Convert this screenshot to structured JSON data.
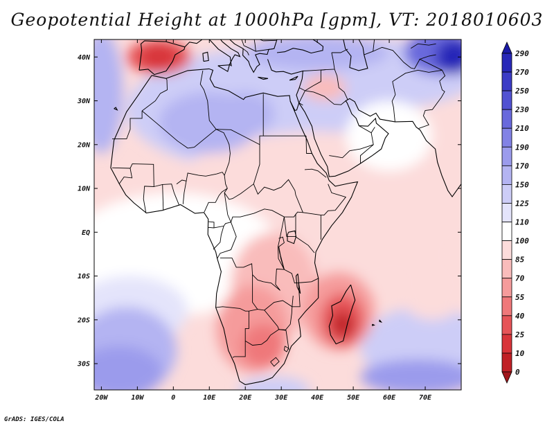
{
  "chart_data": {
    "type": "heatmap",
    "title": "Geopotential Height at 1000hPa [gpm], VT: 2018010603",
    "variable": "Geopotential Height",
    "level": "1000hPa",
    "units": "gpm",
    "valid_time": "2018010603",
    "x_axis": {
      "label": "",
      "range": [
        -22,
        80
      ],
      "ticks": [
        {
          "value": -20,
          "label": "20W"
        },
        {
          "value": -10,
          "label": "10W"
        },
        {
          "value": 0,
          "label": "0"
        },
        {
          "value": 10,
          "label": "10E"
        },
        {
          "value": 20,
          "label": "20E"
        },
        {
          "value": 30,
          "label": "30E"
        },
        {
          "value": 40,
          "label": "40E"
        },
        {
          "value": 50,
          "label": "50E"
        },
        {
          "value": 60,
          "label": "60E"
        },
        {
          "value": 70,
          "label": "70E"
        }
      ]
    },
    "y_axis": {
      "label": "",
      "range": [
        -36,
        44
      ],
      "ticks": [
        {
          "value": 40,
          "label": "40N"
        },
        {
          "value": 30,
          "label": "30N"
        },
        {
          "value": 20,
          "label": "20N"
        },
        {
          "value": 10,
          "label": "10N"
        },
        {
          "value": 0,
          "label": "EQ"
        },
        {
          "value": -10,
          "label": "10S"
        },
        {
          "value": -20,
          "label": "20S"
        },
        {
          "value": -30,
          "label": "30S"
        }
      ]
    },
    "colorbar": {
      "levels": [
        "0",
        "10",
        "25",
        "40",
        "55",
        "70",
        "85",
        "100",
        "110",
        "125",
        "150",
        "170",
        "190",
        "210",
        "230",
        "250",
        "270",
        "290"
      ],
      "colors": [
        "#a0161b",
        "#c02026",
        "#d8343a",
        "#e65458",
        "#ef787a",
        "#f59b9b",
        "#f9bcbb",
        "#fcdcdb",
        "#ffffff",
        "#e4e4fb",
        "#cdcdf7",
        "#b4b4f2",
        "#9b9bec",
        "#8282e5",
        "#6969dc",
        "#5252d2",
        "#3c3cc6",
        "#2828b8",
        "#1a1aa6"
      ]
    },
    "field_centers": [
      {
        "name": "Iberia low",
        "lon": -4,
        "lat": 40,
        "value": 20
      },
      {
        "name": "Madagascar low",
        "lon": 47,
        "lat": -20,
        "value": 10
      },
      {
        "name": "Southern Africa low",
        "lon": 25,
        "lat": -27,
        "value": 40
      },
      {
        "name": "Southern Africa low 2",
        "lon": 22,
        "lat": -20,
        "value": 50
      },
      {
        "name": "Sahara high",
        "lon": 10,
        "lat": 25,
        "value": 160
      },
      {
        "name": "Libya high",
        "lon": 20,
        "lat": 27,
        "value": 165
      },
      {
        "name": "Central Asia high",
        "lon": 78,
        "lat": 40,
        "value": 280
      },
      {
        "name": "SE Atlantic high",
        "lon": -14,
        "lat": -28,
        "value": 185
      },
      {
        "name": "SW Indian Ocean high",
        "lon": 68,
        "lat": -34,
        "value": 180
      }
    ]
  },
  "footer": {
    "credit": "GrADS: IGES/COLA"
  }
}
